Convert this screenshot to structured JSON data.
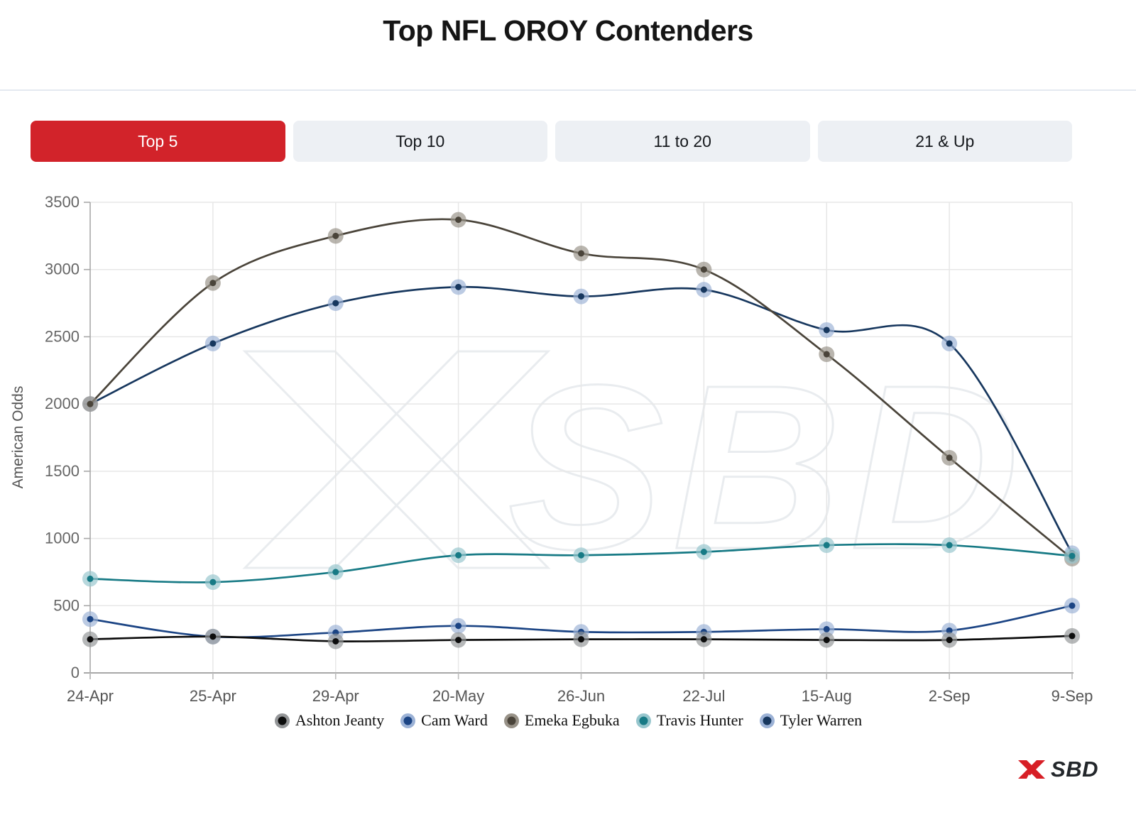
{
  "header": {
    "title": "Top NFL OROY Contenders"
  },
  "tabs": [
    {
      "label": "Top 5",
      "active": true
    },
    {
      "label": "Top 10",
      "active": false
    },
    {
      "label": "11 to 20",
      "active": false
    },
    {
      "label": "21 & Up",
      "active": false
    }
  ],
  "chart_data": {
    "type": "line",
    "title": "Top NFL OROY Contenders",
    "xlabel": "",
    "ylabel": "American Odds",
    "ylim": [
      0,
      3500
    ],
    "ytick_step": 500,
    "grid": true,
    "legend_position": "bottom",
    "categories": [
      "24-Apr",
      "25-Apr",
      "29-Apr",
      "20-May",
      "26-Jun",
      "22-Jul",
      "15-Aug",
      "2-Sep",
      "9-Sep"
    ],
    "series": [
      {
        "name": "Ashton Jeanty",
        "color": "#0d0d0d",
        "halo": "#949698",
        "values": [
          250,
          270,
          235,
          245,
          250,
          250,
          245,
          245,
          275
        ]
      },
      {
        "name": "Cam Ward",
        "color": "#1b4484",
        "halo": "#9cb2d6",
        "values": [
          400,
          270,
          300,
          350,
          305,
          305,
          325,
          315,
          500
        ]
      },
      {
        "name": "Emeka Egbuka",
        "color": "#4a443a",
        "halo": "#989288",
        "values": [
          2000,
          2900,
          3250,
          3370,
          3120,
          3000,
          2370,
          1600,
          850
        ]
      },
      {
        "name": "Travis Hunter",
        "color": "#177a85",
        "halo": "#97c6cd",
        "values": [
          700,
          675,
          750,
          875,
          875,
          900,
          950,
          950,
          870
        ]
      },
      {
        "name": "Tyler Warren",
        "color": "#17375e",
        "halo": "#9cb2d6",
        "values": [
          2000,
          2450,
          2750,
          2870,
          2800,
          2850,
          2550,
          2450,
          890
        ]
      }
    ],
    "draw_order": [
      4,
      2,
      3,
      1,
      0
    ]
  },
  "watermark": {
    "text": "SBD"
  },
  "footer": {
    "brand": "SBD"
  },
  "colors": {
    "active_tab": "#d2232a",
    "brand_red": "#d71f26",
    "gridline": "#e7e7e7",
    "axis": "#a8a8a8",
    "tick_text": "#666666",
    "watermark_stroke": "#e9ecef"
  }
}
